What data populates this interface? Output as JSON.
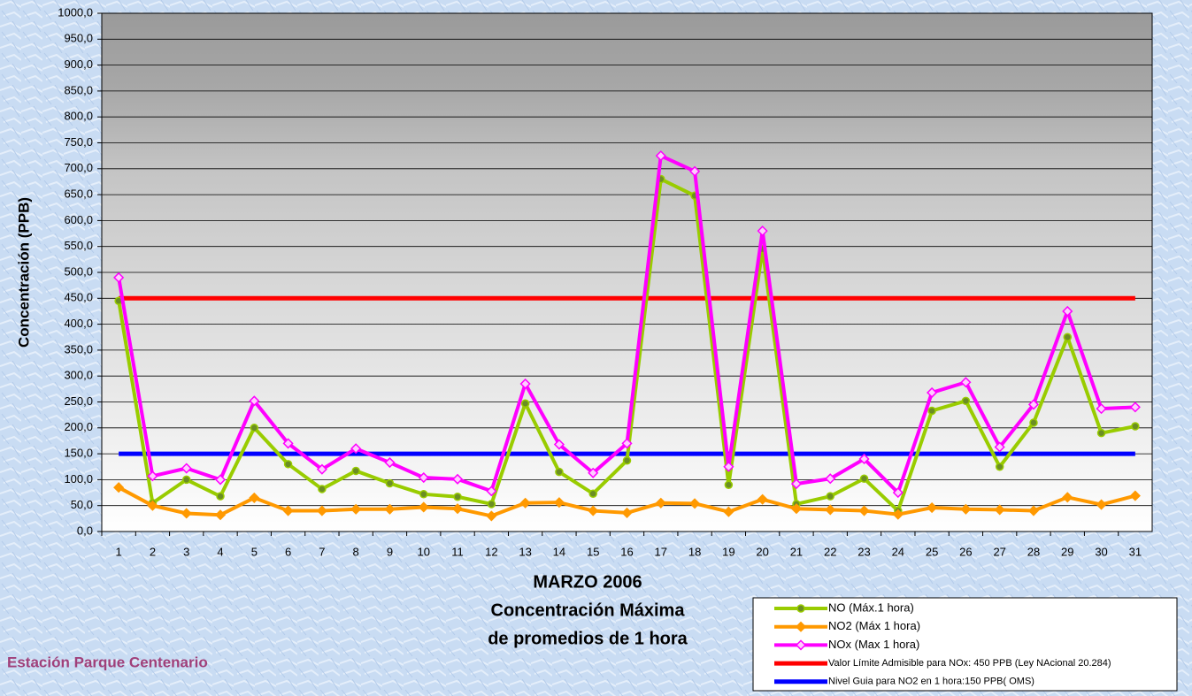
{
  "chart_data": {
    "type": "line",
    "categories": [
      "1",
      "2",
      "3",
      "4",
      "5",
      "6",
      "7",
      "8",
      "9",
      "10",
      "11",
      "12",
      "13",
      "14",
      "15",
      "16",
      "17",
      "18",
      "19",
      "20",
      "21",
      "22",
      "23",
      "24",
      "25",
      "26",
      "27",
      "28",
      "29",
      "30",
      "31"
    ],
    "series": [
      {
        "name": "NO (Máx.1 hora)",
        "color": "#99cc00",
        "marker": "circle",
        "marker_fill": "#6b8e23",
        "values": [
          445,
          55,
          100,
          68,
          200,
          130,
          82,
          117,
          93,
          72,
          67,
          53,
          247,
          115,
          73,
          137,
          680,
          648,
          90,
          545,
          53,
          68,
          102,
          40,
          233,
          252,
          125,
          210,
          375,
          190,
          203
        ]
      },
      {
        "name": "NO2 (Máx 1 hora)",
        "color": "#ff9900",
        "marker": "diamond",
        "marker_fill": "#ff9900",
        "values": [
          85,
          50,
          35,
          32,
          65,
          40,
          40,
          43,
          43,
          47,
          44,
          30,
          55,
          56,
          40,
          36,
          55,
          54,
          38,
          62,
          44,
          42,
          40,
          33,
          46,
          43,
          42,
          40,
          66,
          52,
          69
        ]
      },
      {
        "name": "NOx (Max 1 hora)",
        "color": "#ff00ff",
        "marker": "diamond",
        "marker_fill": "#ffccff",
        "values": [
          490,
          107,
          122,
          100,
          252,
          170,
          120,
          160,
          133,
          104,
          101,
          78,
          285,
          168,
          113,
          170,
          725,
          695,
          125,
          580,
          92,
          102,
          140,
          75,
          268,
          288,
          163,
          245,
          425,
          237,
          240
        ]
      },
      {
        "name": "Valor Límite Admisible para NOx: 450 PPB (Ley NAcional 20.284)",
        "color": "#ff0000",
        "marker": null,
        "values": [
          450,
          450,
          450,
          450,
          450,
          450,
          450,
          450,
          450,
          450,
          450,
          450,
          450,
          450,
          450,
          450,
          450,
          450,
          450,
          450,
          450,
          450,
          450,
          450,
          450,
          450,
          450,
          450,
          450,
          450,
          450
        ]
      },
      {
        "name": "Nivel Guia para NO2 en 1 hora:150 PPB( OMS)",
        "color": "#0000ff",
        "marker": null,
        "values": [
          150,
          150,
          150,
          150,
          150,
          150,
          150,
          150,
          150,
          150,
          150,
          150,
          150,
          150,
          150,
          150,
          150,
          150,
          150,
          150,
          150,
          150,
          150,
          150,
          150,
          150,
          150,
          150,
          150,
          150,
          150
        ]
      }
    ],
    "y_label": "Concentración  (PPB)",
    "x_label": [
      "MARZO 2006",
      "Concentración Máxima",
      "de promedios de 1 hora"
    ],
    "annotation": "Estación Parque Centenario",
    "ylim": [
      0,
      1000
    ],
    "yticks": [
      {
        "value": 0,
        "label": "0,0"
      },
      {
        "value": 50,
        "label": "50,0"
      },
      {
        "value": 100,
        "label": "100,0"
      },
      {
        "value": 150,
        "label": "150,0"
      },
      {
        "value": 200,
        "label": "200,0"
      },
      {
        "value": 250,
        "label": "250,0"
      },
      {
        "value": 300,
        "label": "300,0"
      },
      {
        "value": 350,
        "label": "350,0"
      },
      {
        "value": 400,
        "label": "400,0"
      },
      {
        "value": 450,
        "label": "450,0"
      },
      {
        "value": 500,
        "label": "500,0"
      },
      {
        "value": 550,
        "label": "550,0"
      },
      {
        "value": 600,
        "label": "600,0"
      },
      {
        "value": 650,
        "label": "650,0"
      },
      {
        "value": 700,
        "label": "700,0"
      },
      {
        "value": 750,
        "label": "750,0"
      },
      {
        "value": 800,
        "label": "800,0"
      },
      {
        "value": 850,
        "label": "850,0"
      },
      {
        "value": 900,
        "label": "900,0"
      },
      {
        "value": 950,
        "label": "950,0"
      },
      {
        "value": 1000,
        "label": "1000,0"
      }
    ],
    "grid": true
  }
}
